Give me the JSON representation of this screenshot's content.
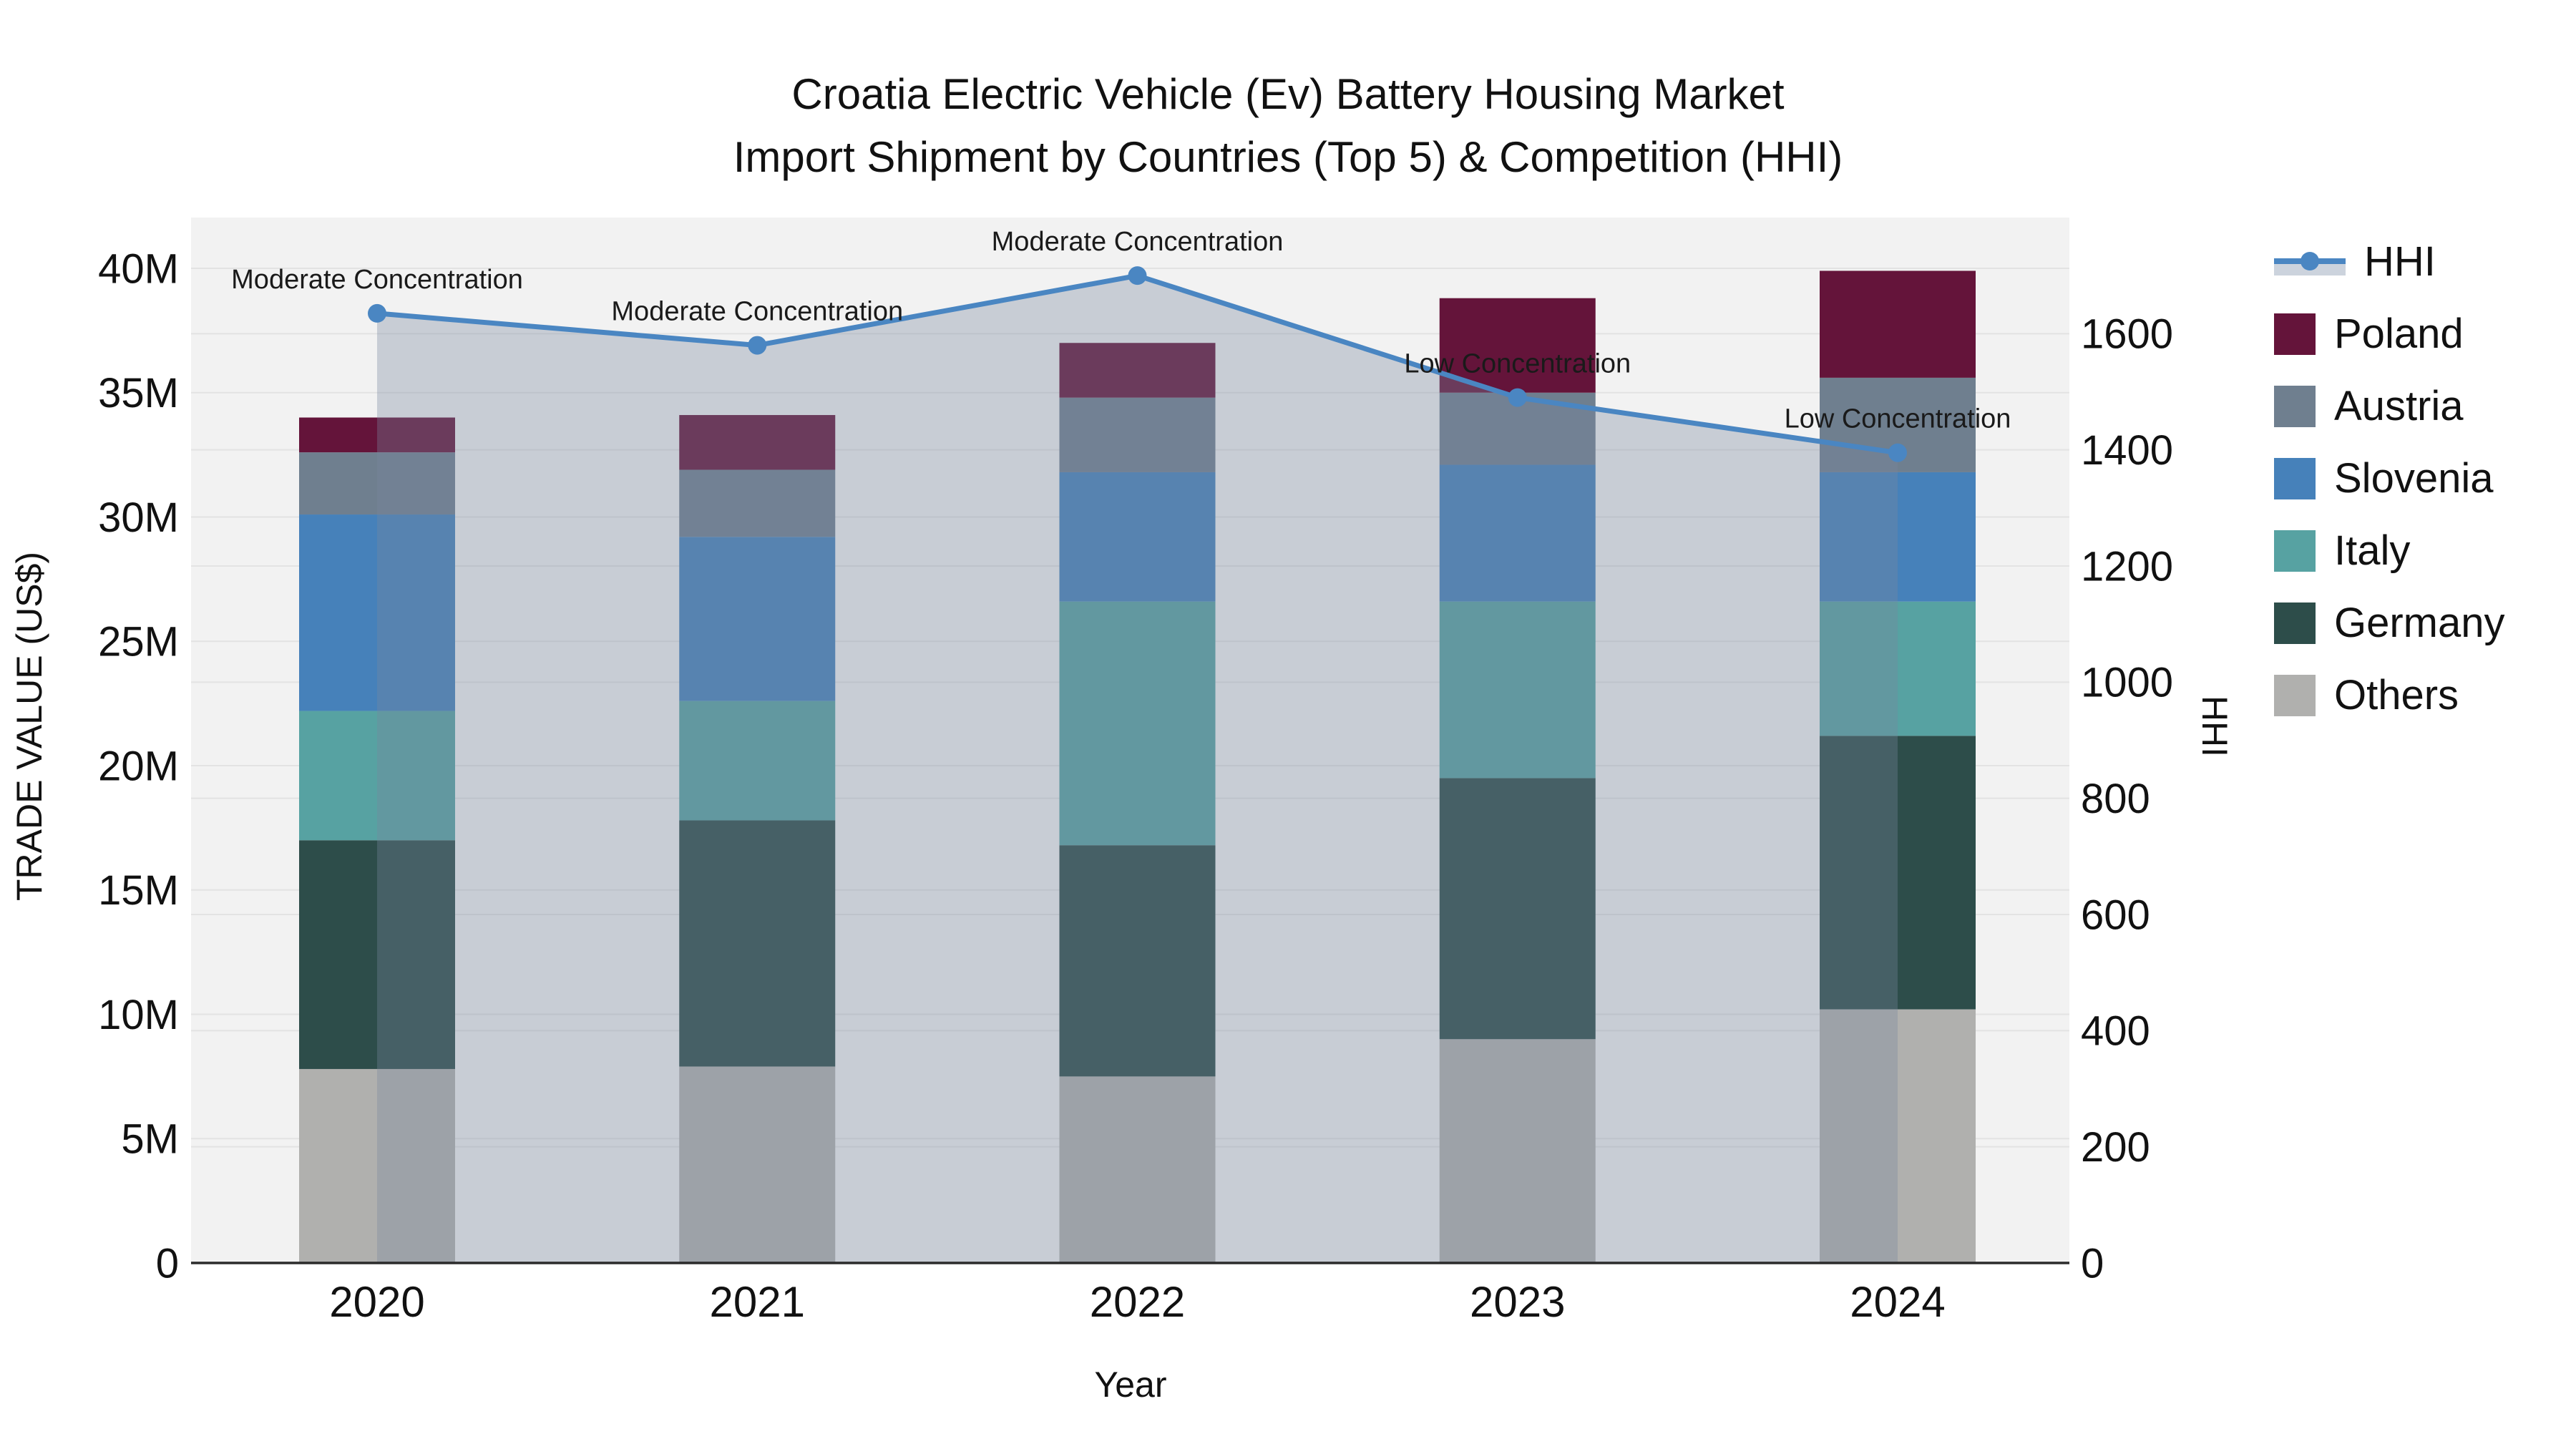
{
  "title": {
    "line1": "Croatia Electric Vehicle (Ev) Battery Housing Market",
    "line2": "Import Shipment by Countries (Top 5) & Competition (HHI)"
  },
  "axes": {
    "left_title": "TRADE VALUE (US$)",
    "right_title": "HHI",
    "x_title": "Year"
  },
  "legend": {
    "items": [
      {
        "label": "HHI",
        "type": "line",
        "color": "#4a86c2",
        "band_color": "#ccd3dd"
      },
      {
        "label": "Poland",
        "type": "swatch",
        "color": "#64143a"
      },
      {
        "label": "Austria",
        "type": "swatch",
        "color": "#6f7f8f"
      },
      {
        "label": "Slovenia",
        "type": "swatch",
        "color": "#4681ba"
      },
      {
        "label": "Italy",
        "type": "swatch",
        "color": "#57a2a2"
      },
      {
        "label": "Germany",
        "type": "swatch",
        "color": "#2d4d4a"
      },
      {
        "label": "Others",
        "type": "swatch",
        "color": "#b0b0ae"
      }
    ]
  },
  "chart_data": {
    "type": "bar",
    "subtype": "stacked-bars-with-line-overlay",
    "title": "Croatia Electric Vehicle (Ev) Battery Housing Market Import Shipment by Countries (Top 5) & Competition (HHI)",
    "categories": [
      "2020",
      "2021",
      "2022",
      "2023",
      "2024"
    ],
    "stack_order": "bottom-to-top",
    "series": [
      {
        "name": "Others",
        "color": "#b0b0ae",
        "values": [
          7.8,
          7.9,
          7.5,
          9.0,
          10.2
        ]
      },
      {
        "name": "Germany",
        "color": "#2d4d4a",
        "values": [
          9.2,
          9.9,
          9.3,
          10.5,
          11.0
        ]
      },
      {
        "name": "Italy",
        "color": "#57a2a2",
        "values": [
          5.2,
          4.8,
          9.8,
          7.1,
          5.4
        ]
      },
      {
        "name": "Slovenia",
        "color": "#4681ba",
        "values": [
          7.9,
          6.6,
          5.2,
          5.5,
          5.2
        ]
      },
      {
        "name": "Austria",
        "color": "#6f7f8f",
        "values": [
          2.5,
          2.7,
          3.0,
          2.9,
          3.8
        ]
      },
      {
        "name": "Poland",
        "color": "#64143a",
        "values": [
          1.4,
          2.2,
          2.2,
          3.8,
          4.3
        ]
      }
    ],
    "bar_totals": [
      34.0,
      34.1,
      37.0,
      38.8,
      39.9
    ],
    "values_unit": "millions US$",
    "line_series": {
      "name": "HHI",
      "color": "#4a86c2",
      "area_fill": "rgba(120,135,158,0.34)",
      "values": [
        1635,
        1580,
        1700,
        1490,
        1395
      ]
    },
    "annotations": [
      "Moderate Concentration",
      "Moderate Concentration",
      "Moderate Concentration",
      "Low Concentration",
      "Low Concentration"
    ],
    "xlabel": "Year",
    "ylabel": "TRADE VALUE (US$)",
    "y2label": "HHI",
    "left_axis": {
      "tick_values": [
        0,
        5,
        10,
        15,
        20,
        25,
        30,
        35,
        40
      ],
      "tick_labels": [
        "0",
        "5M",
        "10M",
        "15M",
        "20M",
        "25M",
        "30M",
        "35M",
        "40M"
      ],
      "ylim": [
        0,
        42
      ]
    },
    "right_axis": {
      "tick_values": [
        0,
        200,
        400,
        600,
        800,
        1000,
        1200,
        1400,
        1600
      ],
      "tick_labels": [
        "0",
        "200",
        "400",
        "600",
        "800",
        "1000",
        "1200",
        "1400",
        "1600"
      ],
      "ylim": [
        0,
        1800
      ]
    },
    "grid": true,
    "legend_position": "right",
    "plot_bg": "#f2f2f2",
    "grid_color": "#e3e3e3",
    "axis_line_color": "#2b2b2b",
    "text_color": "#111111"
  }
}
